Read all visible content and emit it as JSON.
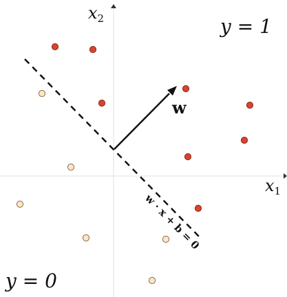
{
  "labels": {
    "x1_axis": "x",
    "x1_sub": "1",
    "x2_axis": "x",
    "x2_sub": "2",
    "class_pos": "y = 1",
    "class_neg": "y = 0",
    "weight": "w",
    "boundary": "w · x + b = 0"
  },
  "colors": {
    "positive_fill": "#d9432f",
    "positive_stroke": "#8a2a1e",
    "negative_fill": "#fde6c8",
    "negative_stroke": "#8a6d4b",
    "axis": "#e6e6e6",
    "line": "#111111"
  },
  "points": {
    "positive": [
      [
        -85,
        188
      ],
      [
        -30,
        184
      ],
      [
        -17,
        106
      ],
      [
        105,
        127
      ],
      [
        198,
        103
      ],
      [
        190,
        52
      ],
      [
        108,
        28
      ],
      [
        123,
        -47
      ]
    ],
    "negative": [
      [
        -104,
        120
      ],
      [
        -62,
        13
      ],
      [
        -136,
        -41
      ],
      [
        -40,
        -90
      ],
      [
        76,
        -92
      ],
      [
        56,
        -152
      ]
    ]
  }
}
